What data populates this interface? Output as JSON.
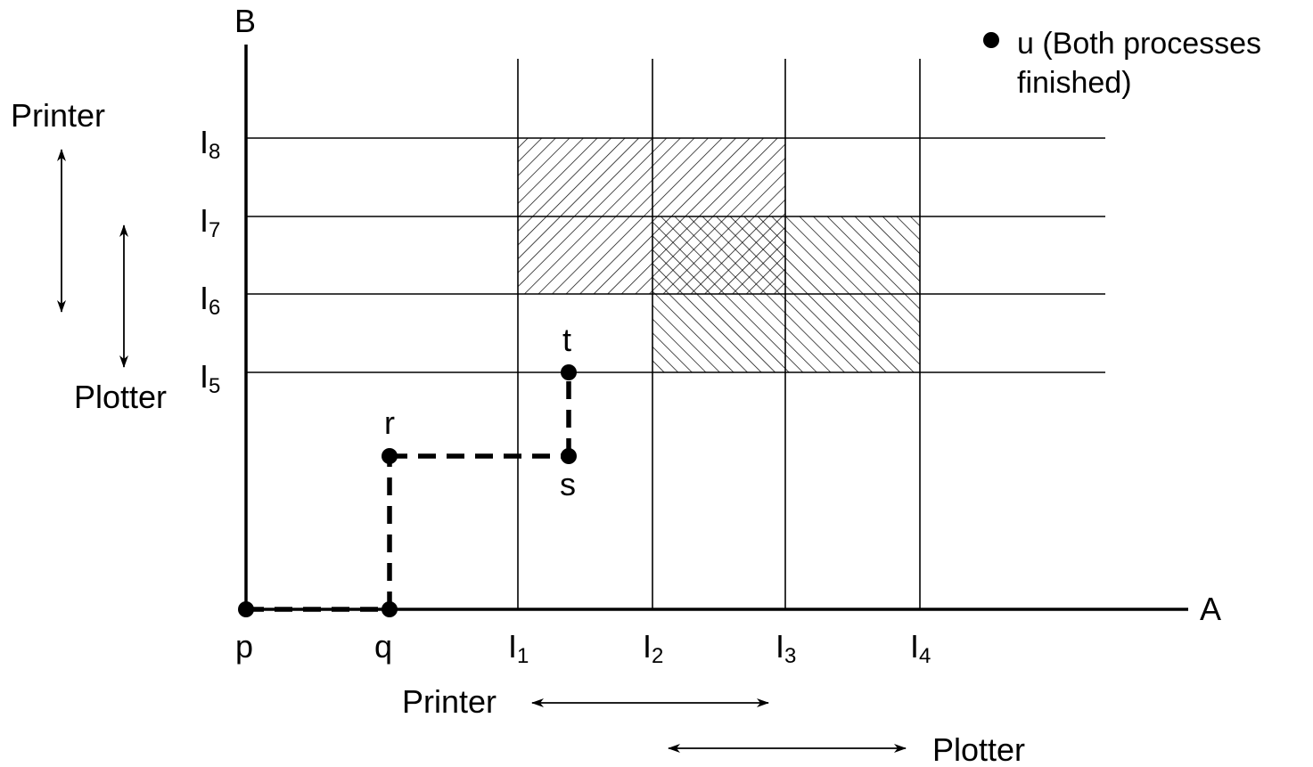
{
  "axes": {
    "y_label": "B",
    "x_label": "A"
  },
  "legend": {
    "line1": "u (Both processes",
    "line2": "finished)"
  },
  "y_levels": [
    {
      "id": "I8",
      "base": "I",
      "sub": "8"
    },
    {
      "id": "I7",
      "base": "I",
      "sub": "7"
    },
    {
      "id": "I6",
      "base": "I",
      "sub": "6"
    },
    {
      "id": "I5",
      "base": "I",
      "sub": "5"
    }
  ],
  "x_levels": [
    {
      "id": "I1",
      "base": "I",
      "sub": "1"
    },
    {
      "id": "I2",
      "base": "I",
      "sub": "2"
    },
    {
      "id": "I3",
      "base": "I",
      "sub": "3"
    },
    {
      "id": "I4",
      "base": "I",
      "sub": "4"
    }
  ],
  "points": {
    "p": "p",
    "q": "q",
    "r": "r",
    "s": "s",
    "t": "t"
  },
  "left_resources": {
    "printer": "Printer",
    "plotter": "Plotter"
  },
  "bottom_resources": {
    "printer": "Printer",
    "plotter": "Plotter"
  },
  "colors": {
    "ink": "#000000",
    "background": "#ffffff"
  }
}
